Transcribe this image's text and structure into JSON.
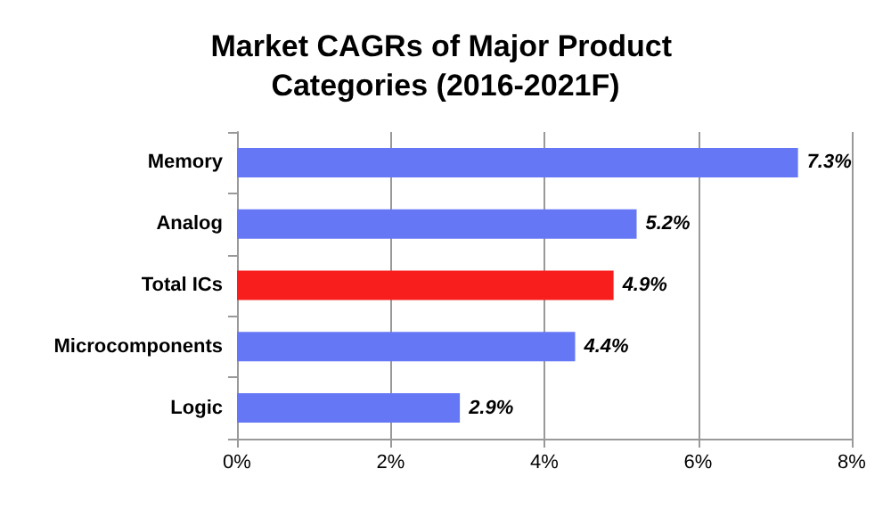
{
  "chart_data": {
    "type": "bar",
    "orientation": "horizontal",
    "title": "Market CAGRs of Major Product Categories (2016-2021F)",
    "categories": [
      "Memory",
      "Analog",
      "Total ICs",
      "Microcomponents",
      "Logic"
    ],
    "values": [
      7.3,
      5.2,
      4.9,
      4.4,
      2.9
    ],
    "colors": [
      "#6677f5",
      "#6677f5",
      "#f81e1e",
      "#6677f5",
      "#6677f5"
    ],
    "value_labels": [
      "7.3%",
      "5.2%",
      "4.9%",
      "4.4%",
      "2.9%"
    ],
    "xlim": [
      0,
      8
    ],
    "xticks": [
      {
        "value": 0,
        "label": "0%"
      },
      {
        "value": 2,
        "label": "2%"
      },
      {
        "value": 4,
        "label": "4%"
      },
      {
        "value": 6,
        "label": "6%"
      },
      {
        "value": 8,
        "label": "8%"
      }
    ],
    "grid": "x"
  }
}
